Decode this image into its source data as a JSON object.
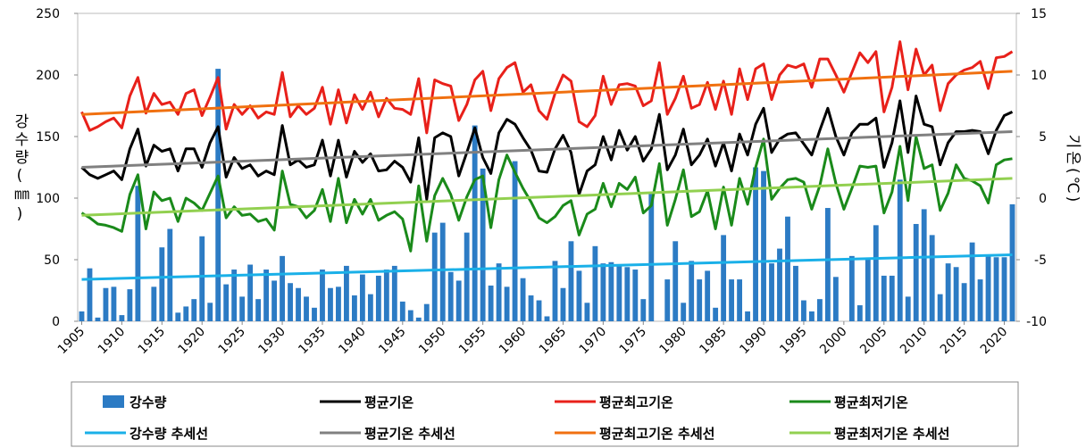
{
  "chart_data": {
    "type": "combo",
    "y_label": "강수량(㎜)",
    "y2_label": "기온(℃)",
    "x": [
      1905,
      1906,
      1907,
      1908,
      1909,
      1910,
      1911,
      1912,
      1913,
      1914,
      1915,
      1916,
      1917,
      1918,
      1919,
      1920,
      1921,
      1922,
      1923,
      1924,
      1925,
      1926,
      1927,
      1928,
      1929,
      1930,
      1931,
      1932,
      1933,
      1934,
      1935,
      1936,
      1937,
      1938,
      1939,
      1940,
      1941,
      1942,
      1943,
      1944,
      1945,
      1946,
      1947,
      1948,
      1949,
      1950,
      1951,
      1952,
      1953,
      1954,
      1955,
      1956,
      1957,
      1958,
      1959,
      1960,
      1961,
      1962,
      1963,
      1964,
      1965,
      1966,
      1967,
      1968,
      1969,
      1970,
      1971,
      1972,
      1973,
      1974,
      1975,
      1976,
      1977,
      1978,
      1979,
      1980,
      1981,
      1982,
      1983,
      1984,
      1985,
      1986,
      1987,
      1988,
      1989,
      1990,
      1991,
      1992,
      1993,
      1994,
      1995,
      1996,
      1997,
      1998,
      1999,
      2000,
      2001,
      2002,
      2003,
      2004,
      2005,
      2006,
      2007,
      2008,
      2009,
      2010,
      2011,
      2012,
      2013,
      2014,
      2015,
      2016,
      2017,
      2018,
      2019,
      2020,
      2021
    ],
    "xlim": [
      1904.5,
      2021.5
    ],
    "xticks": [
      1905,
      1910,
      1915,
      1920,
      1925,
      1930,
      1935,
      1940,
      1945,
      1950,
      1955,
      1960,
      1965,
      1970,
      1975,
      1980,
      1985,
      1990,
      1995,
      2000,
      2005,
      2010,
      2015,
      2020
    ],
    "ylim": [
      0,
      250
    ],
    "yticks": [
      0,
      50,
      100,
      150,
      200,
      250
    ],
    "y2lim": [
      -10,
      15
    ],
    "y2ticks": [
      -10,
      -5,
      0,
      5,
      10,
      15
    ],
    "series": [
      {
        "name": "강수량",
        "type": "bar",
        "color": "#2c7bc4",
        "values": [
          8,
          43,
          3,
          27,
          28,
          5,
          26,
          110,
          0,
          28,
          60,
          75,
          7,
          12,
          18,
          69,
          15,
          205,
          30,
          42,
          20,
          46,
          18,
          42,
          33,
          53,
          31,
          27,
          20,
          11,
          42,
          27,
          28,
          45,
          21,
          38,
          22,
          37,
          42,
          45,
          16,
          9,
          3,
          14,
          72,
          80,
          40,
          33,
          72,
          159,
          124,
          29,
          47,
          28,
          130,
          35,
          21,
          17,
          4,
          49,
          27,
          65,
          41,
          15,
          61,
          47,
          48,
          45,
          44,
          42,
          18,
          105,
          0,
          34,
          65,
          15,
          49,
          34,
          41,
          11,
          70,
          34,
          34,
          8,
          125,
          122,
          47,
          59,
          85,
          45,
          17,
          8,
          18,
          92,
          36,
          0,
          53,
          13,
          50,
          78,
          37,
          37,
          115,
          20,
          79,
          91,
          70,
          22,
          47,
          44,
          31,
          64,
          34,
          53,
          52,
          52,
          95
        ]
      },
      {
        "name": "평균기온",
        "type": "line",
        "axis": "y2",
        "color": "#000000",
        "values": [
          2.5,
          1.9,
          1.6,
          1.9,
          2.2,
          1.5,
          4.0,
          5.6,
          2.6,
          4.3,
          3.8,
          4.0,
          2.2,
          4.0,
          4.0,
          2.5,
          4.5,
          5.8,
          1.7,
          3.3,
          2.4,
          2.7,
          1.8,
          2.2,
          1.9,
          5.9,
          2.7,
          3.1,
          2.5,
          2.7,
          4.7,
          1.8,
          4.7,
          1.7,
          3.8,
          2.9,
          3.6,
          2.2,
          2.3,
          3.0,
          2.5,
          1.3,
          4.9,
          -0.1,
          4.9,
          5.3,
          5.0,
          1.8,
          3.7,
          5.7,
          3.3,
          2.0,
          5.3,
          6.4,
          6.0,
          4.9,
          3.9,
          2.2,
          2.1,
          4.0,
          5.1,
          3.7,
          0.3,
          2.2,
          2.7,
          5.0,
          3.1,
          5.5,
          3.9,
          5.0,
          3.0,
          4.0,
          6.8,
          2.3,
          3.5,
          5.6,
          2.7,
          3.5,
          4.8,
          2.6,
          4.5,
          2.2,
          5.2,
          3.5,
          6.0,
          7.3,
          3.7,
          4.8,
          5.2,
          5.3,
          4.4,
          3.5,
          5.5,
          7.3,
          5.0,
          3.5,
          5.3,
          6.0,
          6.0,
          6.5,
          2.5,
          4.5,
          7.9,
          3.7,
          8.3,
          6.0,
          5.8,
          2.7,
          4.5,
          5.4,
          5.4,
          5.5,
          5.4,
          3.6,
          5.5,
          6.7,
          7.0
        ]
      },
      {
        "name": "평균최고기온",
        "type": "line",
        "axis": "y2",
        "color": "#e8201a",
        "values": [
          7.0,
          5.5,
          5.8,
          6.2,
          6.5,
          5.7,
          8.3,
          9.8,
          6.9,
          8.5,
          7.6,
          7.8,
          6.8,
          8.5,
          8.8,
          6.7,
          8.2,
          9.8,
          5.6,
          7.6,
          6.8,
          7.5,
          6.5,
          7.0,
          6.8,
          10.2,
          6.6,
          7.5,
          6.8,
          7.3,
          9.0,
          6.0,
          8.8,
          6.1,
          8.4,
          7.2,
          8.6,
          6.6,
          8.1,
          7.3,
          7.2,
          6.8,
          9.7,
          5.3,
          9.6,
          9.3,
          9.1,
          6.3,
          7.6,
          9.6,
          10.3,
          7.1,
          9.7,
          10.6,
          11.0,
          8.6,
          9.2,
          7.1,
          6.4,
          8.5,
          10.0,
          9.5,
          6.2,
          5.8,
          6.7,
          9.9,
          7.6,
          9.2,
          9.3,
          9.1,
          7.5,
          7.9,
          11.0,
          6.8,
          8.1,
          9.9,
          7.3,
          7.6,
          9.4,
          7.2,
          9.5,
          6.8,
          10.5,
          8.0,
          10.5,
          10.9,
          8.0,
          10.0,
          10.8,
          10.6,
          10.9,
          9.0,
          11.3,
          11.3,
          10.0,
          8.6,
          10.2,
          11.8,
          11.0,
          11.9,
          7.0,
          9.0,
          12.7,
          8.8,
          12.1,
          10.0,
          10.8,
          7.1,
          9.3,
          10.0,
          10.4,
          10.6,
          11.1,
          8.9,
          11.4,
          11.5,
          11.9
        ]
      },
      {
        "name": "평균최저기온",
        "type": "line",
        "axis": "y2",
        "color": "#1a8a1a",
        "values": [
          -1.2,
          -1.6,
          -2.1,
          -2.2,
          -2.4,
          -2.7,
          0.3,
          1.9,
          -2.5,
          0.5,
          -0.2,
          0.0,
          -1.9,
          0.0,
          -0.4,
          -1.0,
          0.4,
          1.8,
          -1.6,
          -0.7,
          -1.4,
          -1.3,
          -1.9,
          -1.7,
          -2.6,
          2.2,
          -0.5,
          -0.7,
          -1.6,
          -1.0,
          0.7,
          -1.9,
          1.6,
          -2.0,
          -0.1,
          -1.3,
          -0.1,
          -1.8,
          -1.4,
          -1.1,
          -1.7,
          -4.3,
          1.0,
          -3.5,
          0.2,
          1.6,
          0.3,
          -1.8,
          0.1,
          1.5,
          1.8,
          -2.4,
          1.5,
          3.5,
          2.1,
          0.8,
          -0.3,
          -1.6,
          -2.0,
          -1.5,
          -0.6,
          -0.2,
          -3.0,
          -1.3,
          -0.9,
          1.2,
          -0.7,
          1.2,
          0.7,
          1.7,
          -1.2,
          -0.6,
          2.8,
          -2.2,
          -0.1,
          2.3,
          -1.5,
          -1.1,
          0.6,
          -2.5,
          0.9,
          -2.2,
          1.6,
          -0.5,
          2.5,
          4.8,
          -0.1,
          0.8,
          1.5,
          1.6,
          1.3,
          -0.9,
          1.0,
          4.0,
          1.2,
          -0.9,
          0.8,
          2.6,
          2.5,
          2.6,
          -1.2,
          0.5,
          4.2,
          -0.2,
          5.0,
          2.4,
          2.7,
          -1.0,
          0.4,
          2.7,
          1.6,
          1.4,
          1.0,
          -0.4,
          2.7,
          3.1,
          3.2
        ]
      },
      {
        "name": "강수량 추세선",
        "type": "line",
        "color": "#1ab0e8",
        "x": [
          1905,
          2021
        ],
        "values": [
          34,
          54
        ]
      },
      {
        "name": "평균기온 추세선",
        "type": "line",
        "axis": "y2",
        "color": "#808080",
        "x": [
          1905,
          2021
        ],
        "values": [
          2.5,
          5.4
        ]
      },
      {
        "name": "평균최고기온 추세선",
        "type": "line",
        "axis": "y2",
        "color": "#f07010",
        "x": [
          1905,
          2021
        ],
        "values": [
          6.8,
          10.3
        ]
      },
      {
        "name": "평균최저기온 추세선",
        "type": "line",
        "axis": "y2",
        "color": "#92d050",
        "x": [
          1905,
          2021
        ],
        "values": [
          -1.4,
          1.6
        ]
      }
    ]
  }
}
